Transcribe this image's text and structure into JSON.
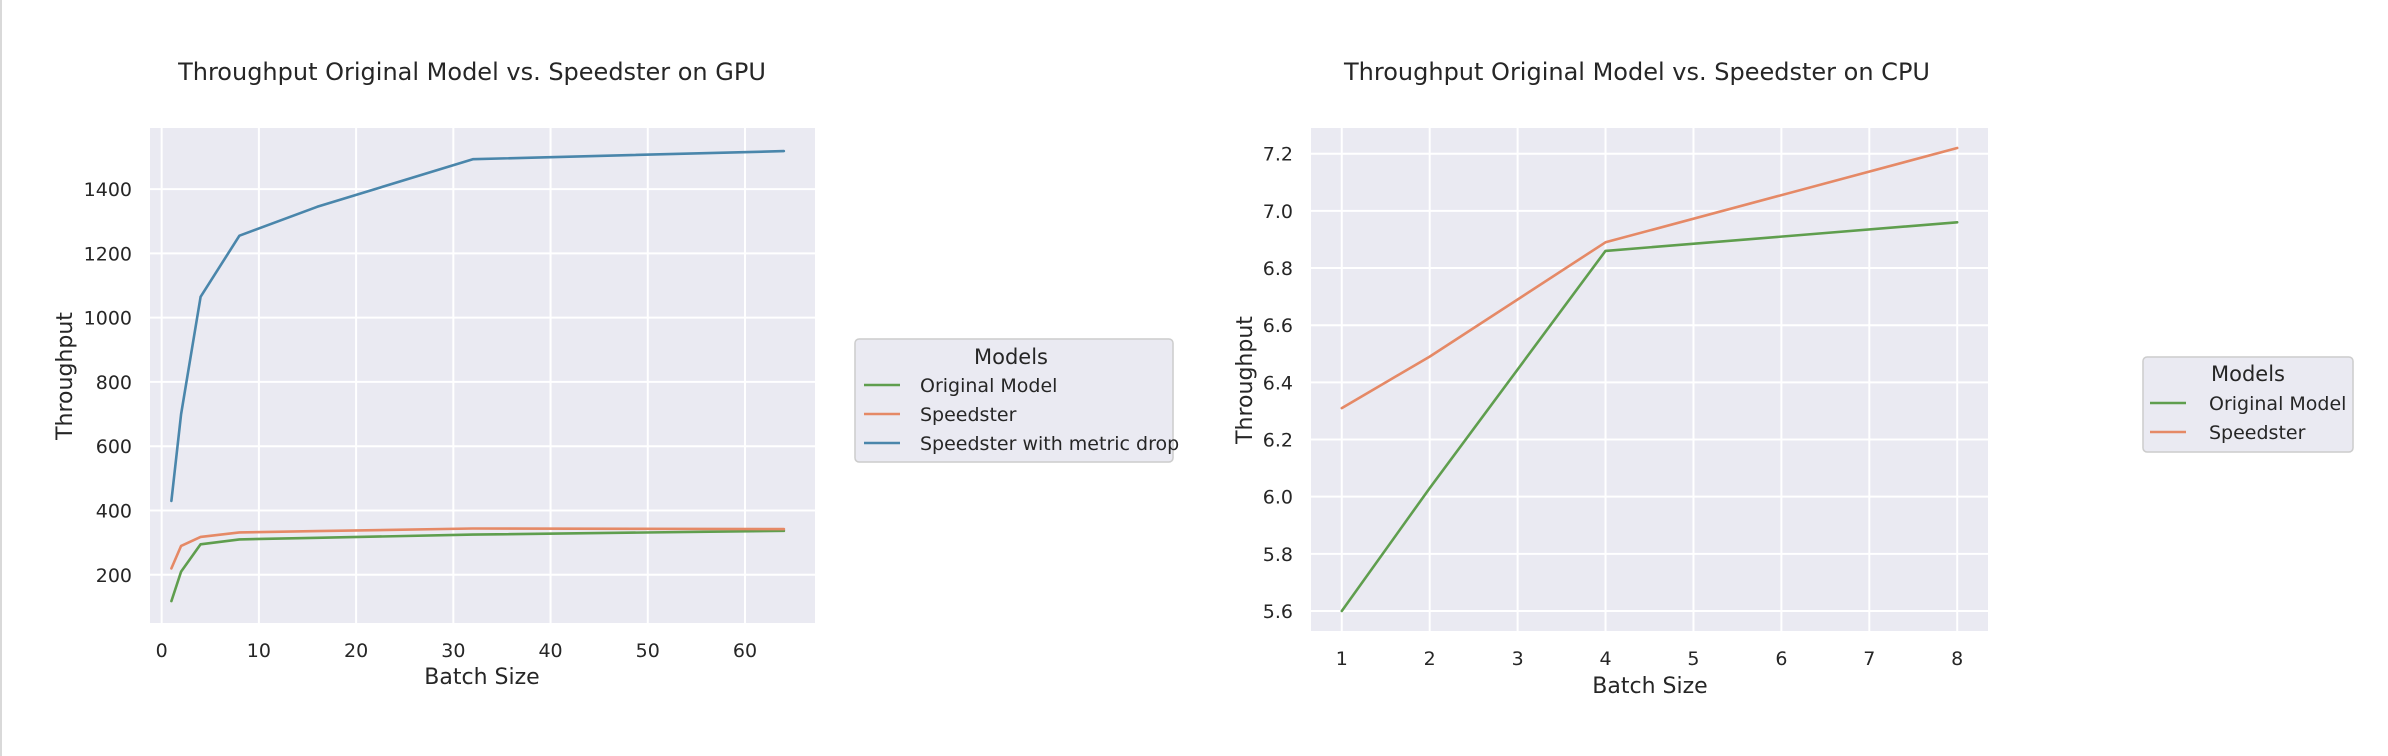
{
  "chart_data": [
    {
      "type": "line",
      "title": "Throughput Original Model vs. Speedster on GPU",
      "xlabel": "Batch Size",
      "ylabel": "Throughput",
      "xlim": [
        -1.2,
        67.2
      ],
      "ylim": [
        50,
        1590
      ],
      "xticks": [
        0,
        10,
        20,
        30,
        40,
        50,
        60
      ],
      "yticks": [
        200,
        400,
        600,
        800,
        1000,
        1200,
        1400
      ],
      "grid": true,
      "legend_title": "Models",
      "legend_position": "right, outside the plot",
      "x": [
        1,
        2,
        4,
        8,
        16,
        32,
        64
      ],
      "series": [
        {
          "name": "Original Model",
          "color": "#5f9e4e",
          "values": [
            118,
            210,
            295,
            310,
            315,
            325,
            337
          ]
        },
        {
          "name": "Speedster",
          "color": "#e58966",
          "values": [
            220,
            290,
            318,
            332,
            336,
            344,
            342
          ]
        },
        {
          "name": "Speedster with metric drop",
          "color": "#4a86ab",
          "values": [
            430,
            700,
            1065,
            1255,
            1345,
            1493,
            1518
          ]
        }
      ]
    },
    {
      "type": "line",
      "title": "Throughput Original Model vs. Speedster on CPU",
      "xlabel": "Batch Size",
      "ylabel": "Throughput",
      "xlim": [
        0.65,
        8.35
      ],
      "ylim": [
        5.53,
        7.29
      ],
      "xticks": [
        1,
        2,
        3,
        4,
        5,
        6,
        7,
        8
      ],
      "yticks": [
        5.6,
        5.8,
        6.0,
        6.2,
        6.4,
        6.6,
        6.8,
        7.0,
        7.2
      ],
      "ytick_labels": [
        "5.6",
        "5.8",
        "6.0",
        "6.2",
        "6.4",
        "6.6",
        "6.8",
        "7.0",
        "7.2"
      ],
      "grid": true,
      "legend_title": "Models",
      "legend_position": "right, outside the plot",
      "x": [
        1,
        2,
        4,
        8
      ],
      "series": [
        {
          "name": "Original Model",
          "color": "#5f9e4e",
          "values": [
            5.6,
            6.03,
            6.86,
            6.96
          ]
        },
        {
          "name": "Speedster",
          "color": "#e58966",
          "values": [
            6.31,
            6.49,
            6.89,
            7.22
          ]
        }
      ]
    }
  ]
}
